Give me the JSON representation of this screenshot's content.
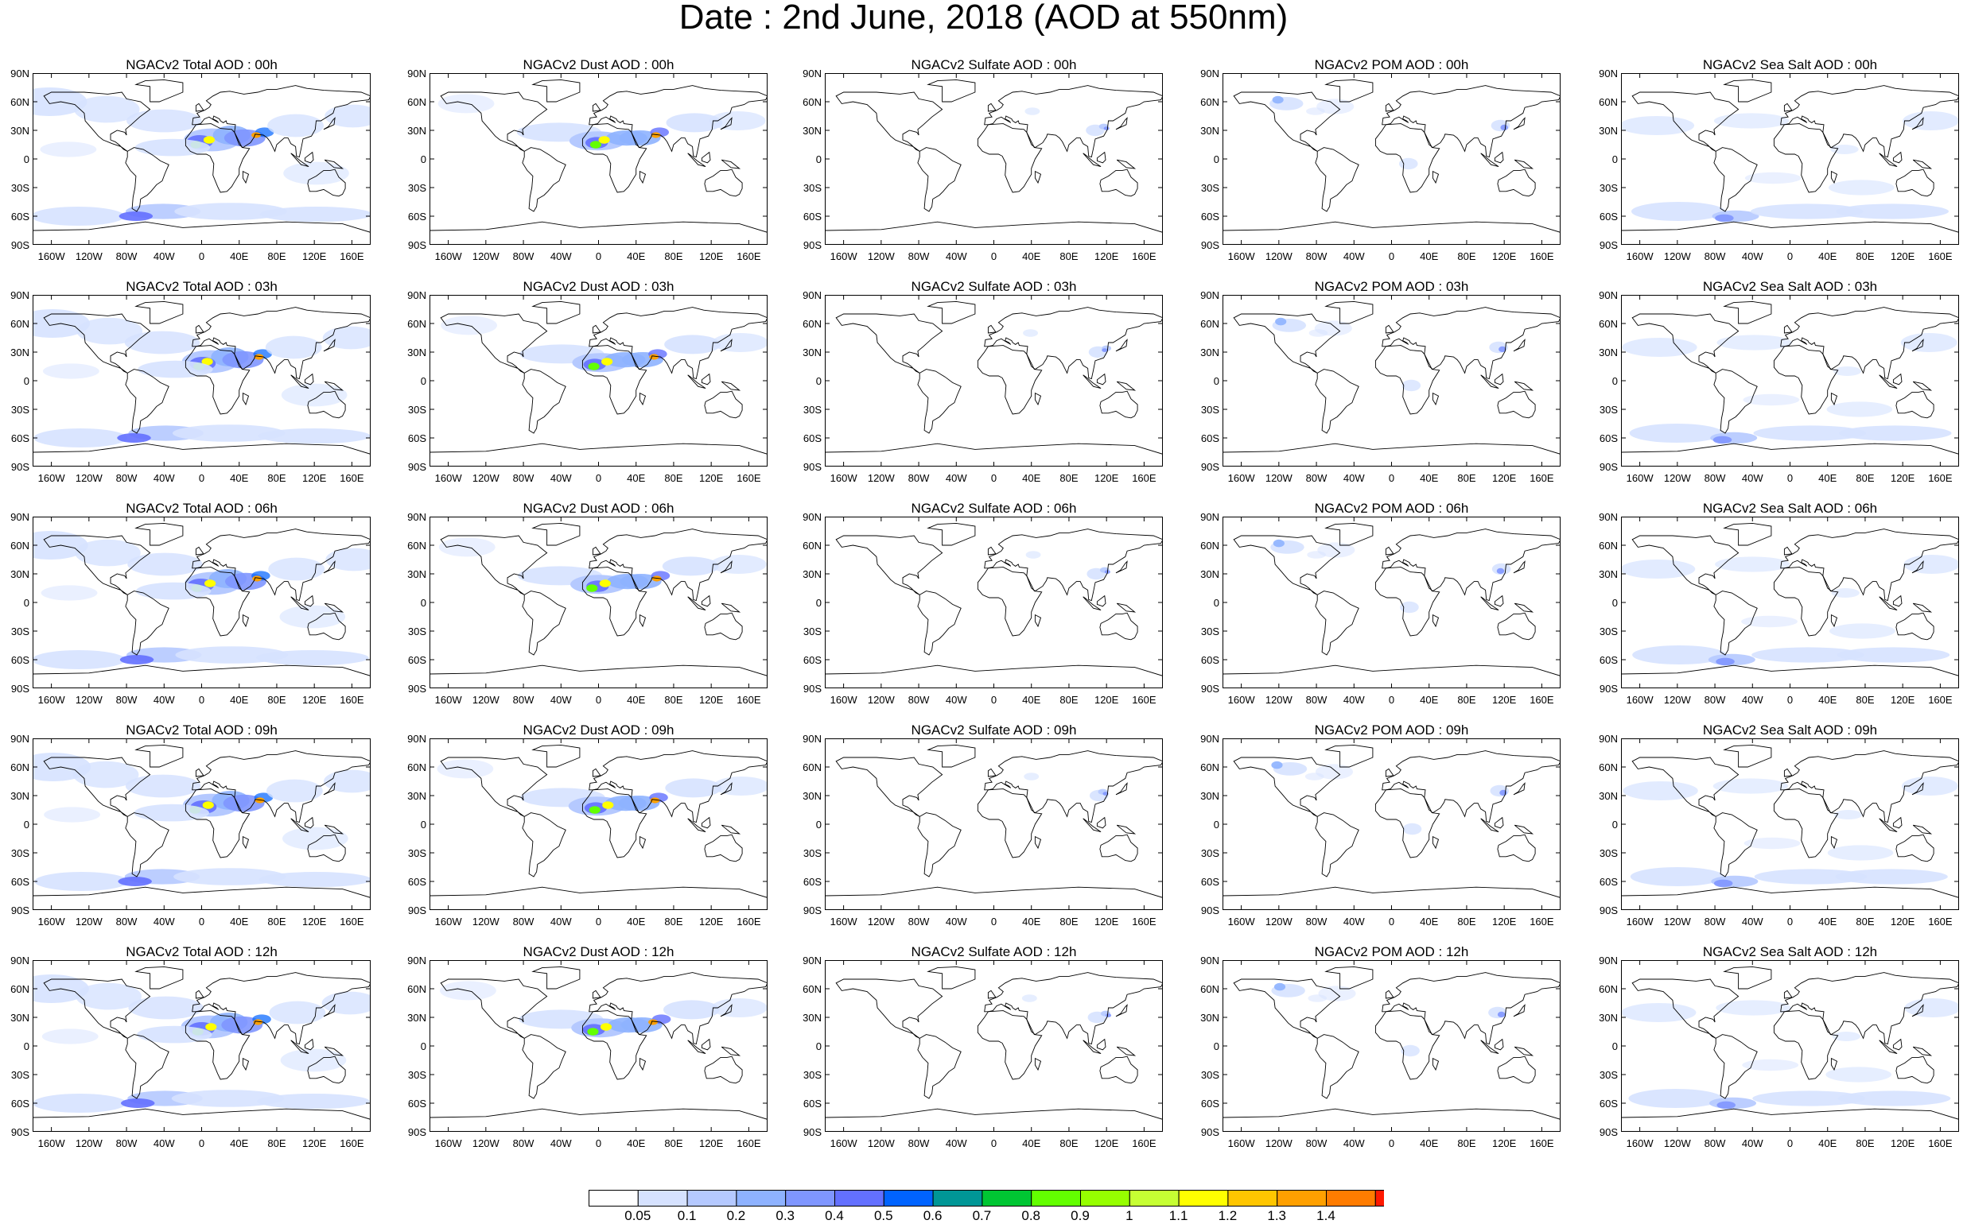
{
  "title": "Date : 2nd June, 2018 (AOD at 550nm)",
  "species": [
    "Total",
    "Dust",
    "Sulfate",
    "POM",
    "Sea Salt"
  ],
  "rows": [
    [
      "NGACv2 Total AOD : 00h",
      "NGACv2 Dust AOD : 00h",
      "NGACv2 Sulfate AOD : 00h",
      "NGACv2 POM AOD : 00h",
      "NGACv2 Sea Salt AOD : 00h"
    ],
    [
      "NGACv2 Total AOD : 03h",
      "NGACv2 Dust AOD : 03h",
      "NGACv2 Sulfate AOD : 03h",
      "NGACv2 POM AOD : 03h",
      "NGACv2 Sea Salt AOD : 03h"
    ],
    [
      "NGACv2 Total AOD : 06h",
      "NGACv2 Dust AOD : 06h",
      "NGACv2 Sulfate AOD : 06h",
      "NGACv2 POM AOD : 06h",
      "NGACv2 Sea Salt AOD : 06h"
    ],
    [
      "NGACv2 Total AOD : 09h",
      "NGACv2 Dust AOD : 09h",
      "NGACv2 Sulfate AOD : 09h",
      "NGACv2 POM AOD : 09h",
      "NGACv2 Sea Salt  AOD : 09h"
    ],
    [
      "NGACv2 Total AOD : 12h",
      "NGACv2 Dust AOD : 12h",
      "NGACv2 Sulfate AOD : 12h",
      "NGACv2 POM  AOD : 12h",
      "NGACv2 Sea Salt  AOD : 12h"
    ]
  ],
  "lat_labels": [
    "90N",
    "60N",
    "30N",
    "0",
    "30S",
    "60S",
    "90S"
  ],
  "lon_labels": [
    "160W",
    "120W",
    "80W",
    "40W",
    "0",
    "40E",
    "80E",
    "120E",
    "160E"
  ],
  "colorbar": {
    "ticks": [
      "0.05",
      "0.1",
      "0.2",
      "0.3",
      "0.4",
      "0.5",
      "0.6",
      "0.7",
      "0.8",
      "0.9",
      "1",
      "1.1",
      "1.2",
      "1.3",
      "1.4"
    ],
    "colors": [
      "#ffffff",
      "#d6e2ff",
      "#b5c9ff",
      "#8eb2ff",
      "#7f96ff",
      "#6370ff",
      "#0063ff",
      "#009696",
      "#00c633",
      "#63ff00",
      "#96ff00",
      "#c6ff33",
      "#ffff00",
      "#ffc600",
      "#ffa000",
      "#ff7c00",
      "#ff1900"
    ]
  }
}
